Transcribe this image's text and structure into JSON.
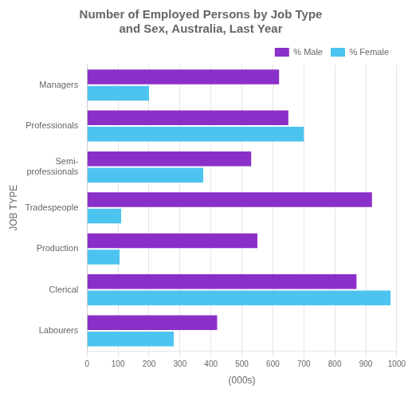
{
  "chart_data": {
    "type": "bar",
    "orientation": "horizontal",
    "title": "Number of Employed Persons by Job Type\nand Sex, Australia, Last Year",
    "categories": [
      "Managers",
      "Professionals",
      "Semi-\nprofessionals",
      "Tradespeople",
      "Production",
      "Clerical",
      "Labourers"
    ],
    "series": [
      {
        "name": "% Male",
        "color": "#8B2FC9",
        "values": [
          620,
          650,
          530,
          920,
          550,
          870,
          420
        ]
      },
      {
        "name": "% Female",
        "color": "#4DC3F0",
        "values": [
          200,
          700,
          375,
          110,
          105,
          980,
          280
        ]
      }
    ],
    "xlabel": "(000s)",
    "ylabel": "JOB TYPE",
    "xlim": [
      0,
      1000
    ],
    "xticks": [
      0,
      100,
      200,
      300,
      400,
      500,
      600,
      700,
      800,
      900,
      1000
    ],
    "grid": true,
    "legend": "upper right"
  }
}
